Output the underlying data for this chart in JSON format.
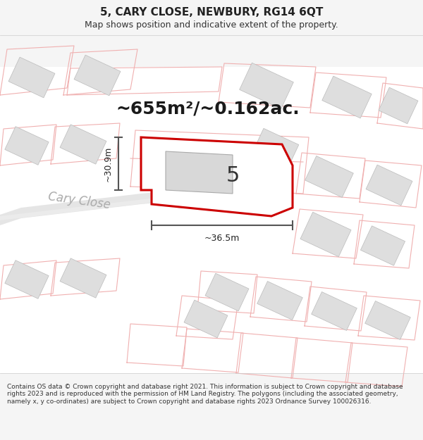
{
  "title": "5, CARY CLOSE, NEWBURY, RG14 6QT",
  "subtitle": "Map shows position and indicative extent of the property.",
  "area_text": "~655m²/~0.162ac.",
  "label_5": "5",
  "dim_height": "~30.9m",
  "dim_width": "~36.5m",
  "street_label": "Cary Close",
  "footer": "Contains OS data © Crown copyright and database right 2021. This information is subject to Crown copyright and database rights 2023 and is reproduced with the permission of HM Land Registry. The polygons (including the associated geometry, namely x, y co-ordinates) are subject to Crown copyright and database rights 2023 Ordnance Survey 100026316.",
  "bg_color": "#f5f5f5",
  "map_bg": "#f8f8f8",
  "red_color": "#cc0000",
  "light_red": "#f0b0b0",
  "gray_outline": "#cccccc",
  "building_fill": "#dedede",
  "building_edge": "#bbbbbb",
  "road_fill": "#e0e0e0",
  "road_edge": "#cccccc",
  "dim_color": "#555555",
  "street_color": "#aaaaaa",
  "title_fontsize": 11,
  "subtitle_fontsize": 9,
  "area_fontsize": 18,
  "label_fontsize": 22,
  "dim_fontsize": 9,
  "street_fontsize": 12,
  "footer_fontsize": 6.5
}
